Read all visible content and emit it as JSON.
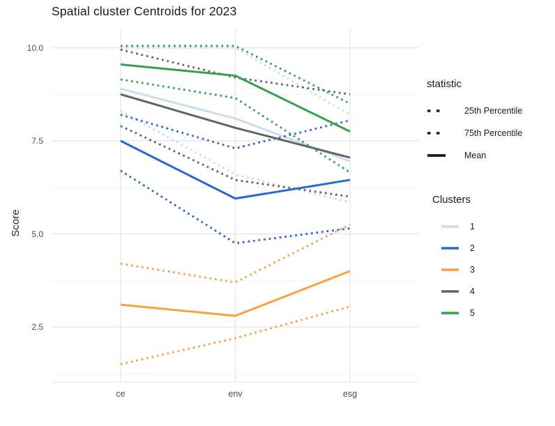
{
  "title": "Spatial cluster Centroids for 2023",
  "axes": {
    "y_label": "Score",
    "y_tick_labels": [
      "10.0",
      "7.5",
      "5.0",
      "2.5"
    ],
    "y_tick_values": [
      10.0,
      7.5,
      5.0,
      2.5
    ],
    "y_minor_values": [
      8.75,
      6.25,
      3.75,
      1.25
    ],
    "x_categories": [
      "ce",
      "env",
      "esg"
    ]
  },
  "legend": {
    "statistic": {
      "title": "statistic",
      "key_color": "#1a1a1a",
      "items": [
        {
          "label": "25th Percentile",
          "style": "dotted"
        },
        {
          "label": "75th Percentile",
          "style": "dotted"
        },
        {
          "label": "Mean",
          "style": "solid"
        }
      ]
    },
    "clusters": {
      "title": "Clusters",
      "items": [
        {
          "label": "1",
          "color": "#c9ddf4"
        },
        {
          "label": "2",
          "color": "#2966d8"
        },
        {
          "label": "3",
          "color": "#f9a23b"
        },
        {
          "label": "4",
          "color": "#636363"
        },
        {
          "label": "5",
          "color": "#35a04b"
        }
      ]
    }
  },
  "chart_data": {
    "type": "line",
    "title": "Spatial cluster Centroids for 2023",
    "xlabel": "",
    "ylabel": "Score",
    "categories": [
      "ce",
      "env",
      "esg"
    ],
    "y_ticks": [
      2.5,
      5.0,
      7.5,
      10.0
    ],
    "grid": "major-and-minor",
    "legend_position": "right",
    "series": [
      {
        "cluster": "1",
        "statistic": "25th Percentile",
        "linetype": "dotted",
        "color": "#c9ddf4",
        "values": [
          8.3,
          6.6,
          5.85
        ]
      },
      {
        "cluster": "1",
        "statistic": "75th Percentile",
        "linetype": "dotted",
        "color": "#c9ddf4",
        "values": [
          10.0,
          10.0,
          8.2
        ]
      },
      {
        "cluster": "1",
        "statistic": "Mean",
        "linetype": "solid",
        "color": "#c9ddf4",
        "values": [
          8.9,
          8.1,
          6.95
        ]
      },
      {
        "cluster": "2",
        "statistic": "25th Percentile",
        "linetype": "dotted",
        "color": "#2966d8",
        "values": [
          6.7,
          4.75,
          5.15
        ]
      },
      {
        "cluster": "2",
        "statistic": "75th Percentile",
        "linetype": "dotted",
        "color": "#2966d8",
        "values": [
          8.2,
          7.3,
          8.05
        ]
      },
      {
        "cluster": "2",
        "statistic": "Mean",
        "linetype": "solid",
        "color": "#2966d8",
        "values": [
          7.5,
          5.95,
          6.45
        ]
      },
      {
        "cluster": "3",
        "statistic": "25th Percentile",
        "linetype": "dotted",
        "color": "#f9a23b",
        "values": [
          1.5,
          2.2,
          3.05
        ]
      },
      {
        "cluster": "3",
        "statistic": "75th Percentile",
        "linetype": "dotted",
        "color": "#f9a23b",
        "values": [
          4.2,
          3.7,
          5.25
        ]
      },
      {
        "cluster": "3",
        "statistic": "Mean",
        "linetype": "solid",
        "color": "#f9a23b",
        "values": [
          3.1,
          2.8,
          4.0
        ]
      },
      {
        "cluster": "4",
        "statistic": "25th Percentile",
        "linetype": "dotted",
        "color": "#636363",
        "values": [
          7.9,
          6.45,
          6.0
        ]
      },
      {
        "cluster": "4",
        "statistic": "75th Percentile",
        "linetype": "dotted",
        "color": "#636363",
        "values": [
          9.95,
          9.2,
          8.75
        ]
      },
      {
        "cluster": "4",
        "statistic": "Mean",
        "linetype": "solid",
        "color": "#636363",
        "values": [
          8.75,
          7.85,
          7.05
        ]
      },
      {
        "cluster": "5",
        "statistic": "25th Percentile",
        "linetype": "dotted",
        "color": "#35a04b",
        "values": [
          9.15,
          8.65,
          6.65
        ]
      },
      {
        "cluster": "5",
        "statistic": "75th Percentile",
        "linetype": "dotted",
        "color": "#35a04b",
        "values": [
          10.05,
          10.05,
          8.5
        ]
      },
      {
        "cluster": "5",
        "statistic": "Mean",
        "linetype": "solid",
        "color": "#35a04b",
        "values": [
          9.55,
          9.25,
          7.75
        ]
      }
    ]
  },
  "style": {
    "major_grid_color": "#e4e4e4",
    "minor_grid_color": "#f0f0f0",
    "background": "#ffffff"
  }
}
